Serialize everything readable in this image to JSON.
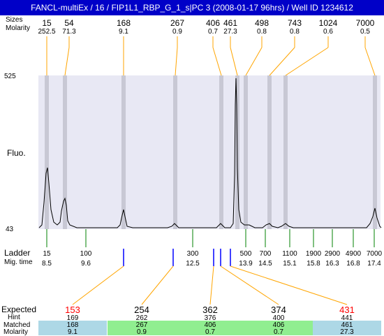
{
  "title": "FANCL-multiEx / 16 / FIP1L1_RBP_G_1_s|PC 3 (2008-01-17 96hrs) / Well ID 1234612",
  "row_labels": {
    "sizes": "Sizes",
    "molarity": "Molarity",
    "fluo": "Fluo.",
    "ladder": "Ladder",
    "mig_time": "Mig. time",
    "expected": "Expected",
    "hint": "Hint",
    "matched": "Matched",
    "molarity_bottom": "Molarity"
  },
  "y_axis": {
    "top": "525",
    "bottom": "43"
  },
  "top_peaks": [
    {
      "size": "15",
      "molarity": "252.5"
    },
    {
      "size": "54",
      "molarity": "71.3"
    },
    {
      "size": "168",
      "molarity": "9.1"
    },
    {
      "size": "267",
      "molarity": "0.9"
    },
    {
      "size": "406",
      "molarity": "0.7"
    },
    {
      "size": "461",
      "molarity": "27.3"
    },
    {
      "size": "498",
      "molarity": "0.8"
    },
    {
      "size": "743",
      "molarity": "0.8"
    },
    {
      "size": "1024",
      "molarity": "0.6"
    },
    {
      "size": "7000",
      "molarity": "0.5"
    }
  ],
  "ladder": [
    {
      "size": "15",
      "time": "8.5"
    },
    {
      "size": "100",
      "time": "9.6"
    },
    {
      "size": "300",
      "time": "12.5"
    },
    {
      "size": "500",
      "time": "13.9"
    },
    {
      "size": "700",
      "time": "14.5"
    },
    {
      "size": "1100",
      "time": "15.1"
    },
    {
      "size": "1900",
      "time": "15.8"
    },
    {
      "size": "2900",
      "time": "16.3"
    },
    {
      "size": "4900",
      "time": "16.8"
    },
    {
      "size": "7000",
      "time": "17.4"
    }
  ],
  "expected": [
    {
      "value": "153",
      "hint": "169",
      "matched": "168",
      "molarity": "9.1",
      "color": "#ff0000",
      "bg": "#add8e6"
    },
    {
      "value": "254",
      "hint": "262",
      "matched": "267",
      "molarity": "0.9",
      "color": "#000000",
      "bg": "#90ee90"
    },
    {
      "value": "362",
      "hint": "376",
      "matched": "406",
      "molarity": "0.7",
      "color": "#000000",
      "bg": "#90ee90"
    },
    {
      "value": "374",
      "hint": "400",
      "matched": "406",
      "molarity": "0.7",
      "color": "#000000",
      "bg": "#90ee90"
    },
    {
      "value": "431",
      "hint": "441",
      "matched": "461",
      "molarity": "27.3",
      "color": "#ff0000",
      "bg": "#add8e6"
    }
  ],
  "colors": {
    "title_bg": "#0000c8",
    "plot_bg": "#e8e8f4",
    "band": "#c8c8d4",
    "leader": "#ffa500",
    "ladder_tick": "#008000",
    "marker": "#0000ff"
  }
}
